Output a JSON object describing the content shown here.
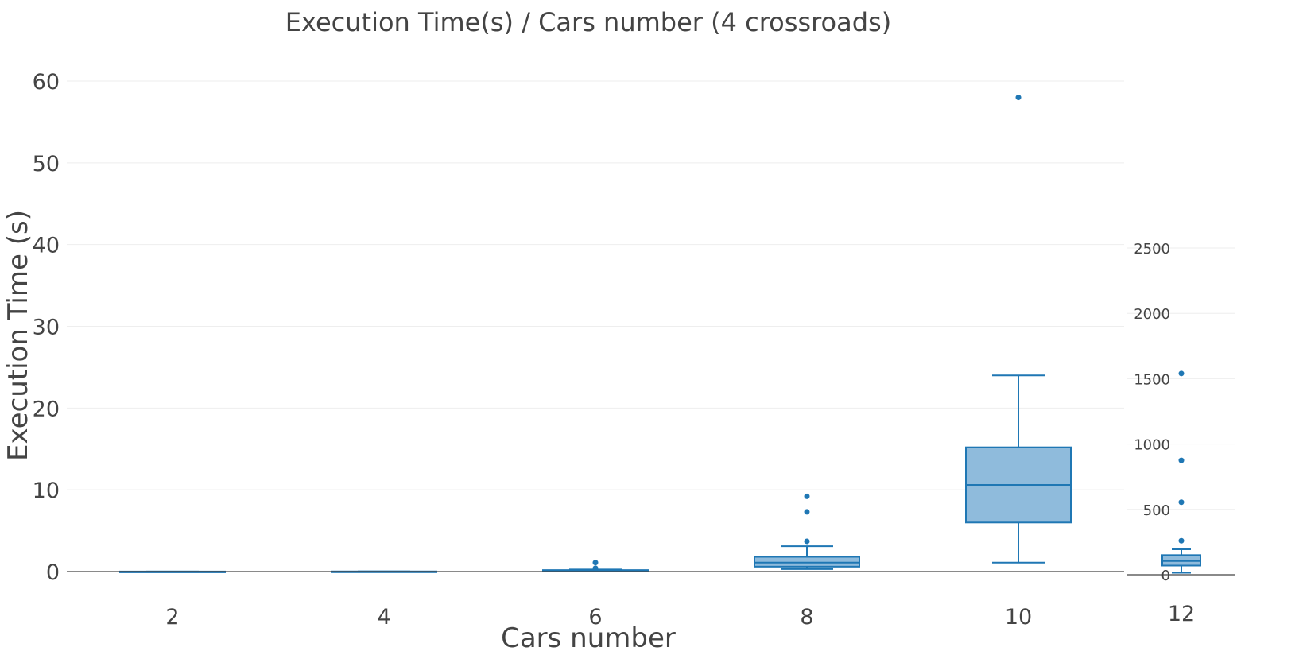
{
  "chart_data": [
    {
      "type": "box",
      "title": "Execution Time(s) / Cars number (4 crossroads)",
      "xlabel": "Cars number",
      "ylabel": "Execution Time (s)",
      "ylim": [
        0,
        60
      ],
      "yticks": [
        0,
        10,
        20,
        30,
        40,
        50,
        60
      ],
      "grid": true,
      "colors": {
        "box_line": "#1f77b4",
        "box_fill": "#8fbbdc",
        "gridline": "#eeeeee",
        "zero_line": "#444444"
      },
      "categories": [
        "2",
        "4",
        "6",
        "8",
        "10"
      ],
      "boxes": [
        {
          "x": "2",
          "min": 0.0,
          "q1": 0.0,
          "median": 0.0,
          "q3": 0.01,
          "max": 0.01,
          "outliers": []
        },
        {
          "x": "4",
          "min": 0.0,
          "q1": 0.0,
          "median": 0.0,
          "q3": 0.02,
          "max": 0.02,
          "outliers": []
        },
        {
          "x": "6",
          "min": 0.05,
          "q1": 0.08,
          "median": 0.12,
          "q3": 0.18,
          "max": 0.25,
          "outliers": [
            0.4,
            1.1
          ]
        },
        {
          "x": "8",
          "min": 0.3,
          "q1": 0.6,
          "median": 1.1,
          "q3": 1.8,
          "max": 3.1,
          "outliers": [
            3.7,
            7.3,
            9.2
          ]
        },
        {
          "x": "10",
          "min": 1.1,
          "q1": 6.0,
          "median": 10.6,
          "q3": 15.2,
          "max": 24.0,
          "outliers": [
            58.0
          ]
        }
      ]
    },
    {
      "type": "box",
      "title": "",
      "xlabel": "",
      "ylabel": "",
      "ylim": [
        0,
        2500
      ],
      "yticks": [
        0,
        500,
        1000,
        1500,
        2000,
        2500
      ],
      "grid": true,
      "categories": [
        "12"
      ],
      "boxes": [
        {
          "x": "12",
          "min": 15,
          "q1": 70,
          "median": 105,
          "q3": 150,
          "max": 195,
          "outliers": [
            260,
            555,
            875,
            1540
          ]
        }
      ]
    }
  ]
}
